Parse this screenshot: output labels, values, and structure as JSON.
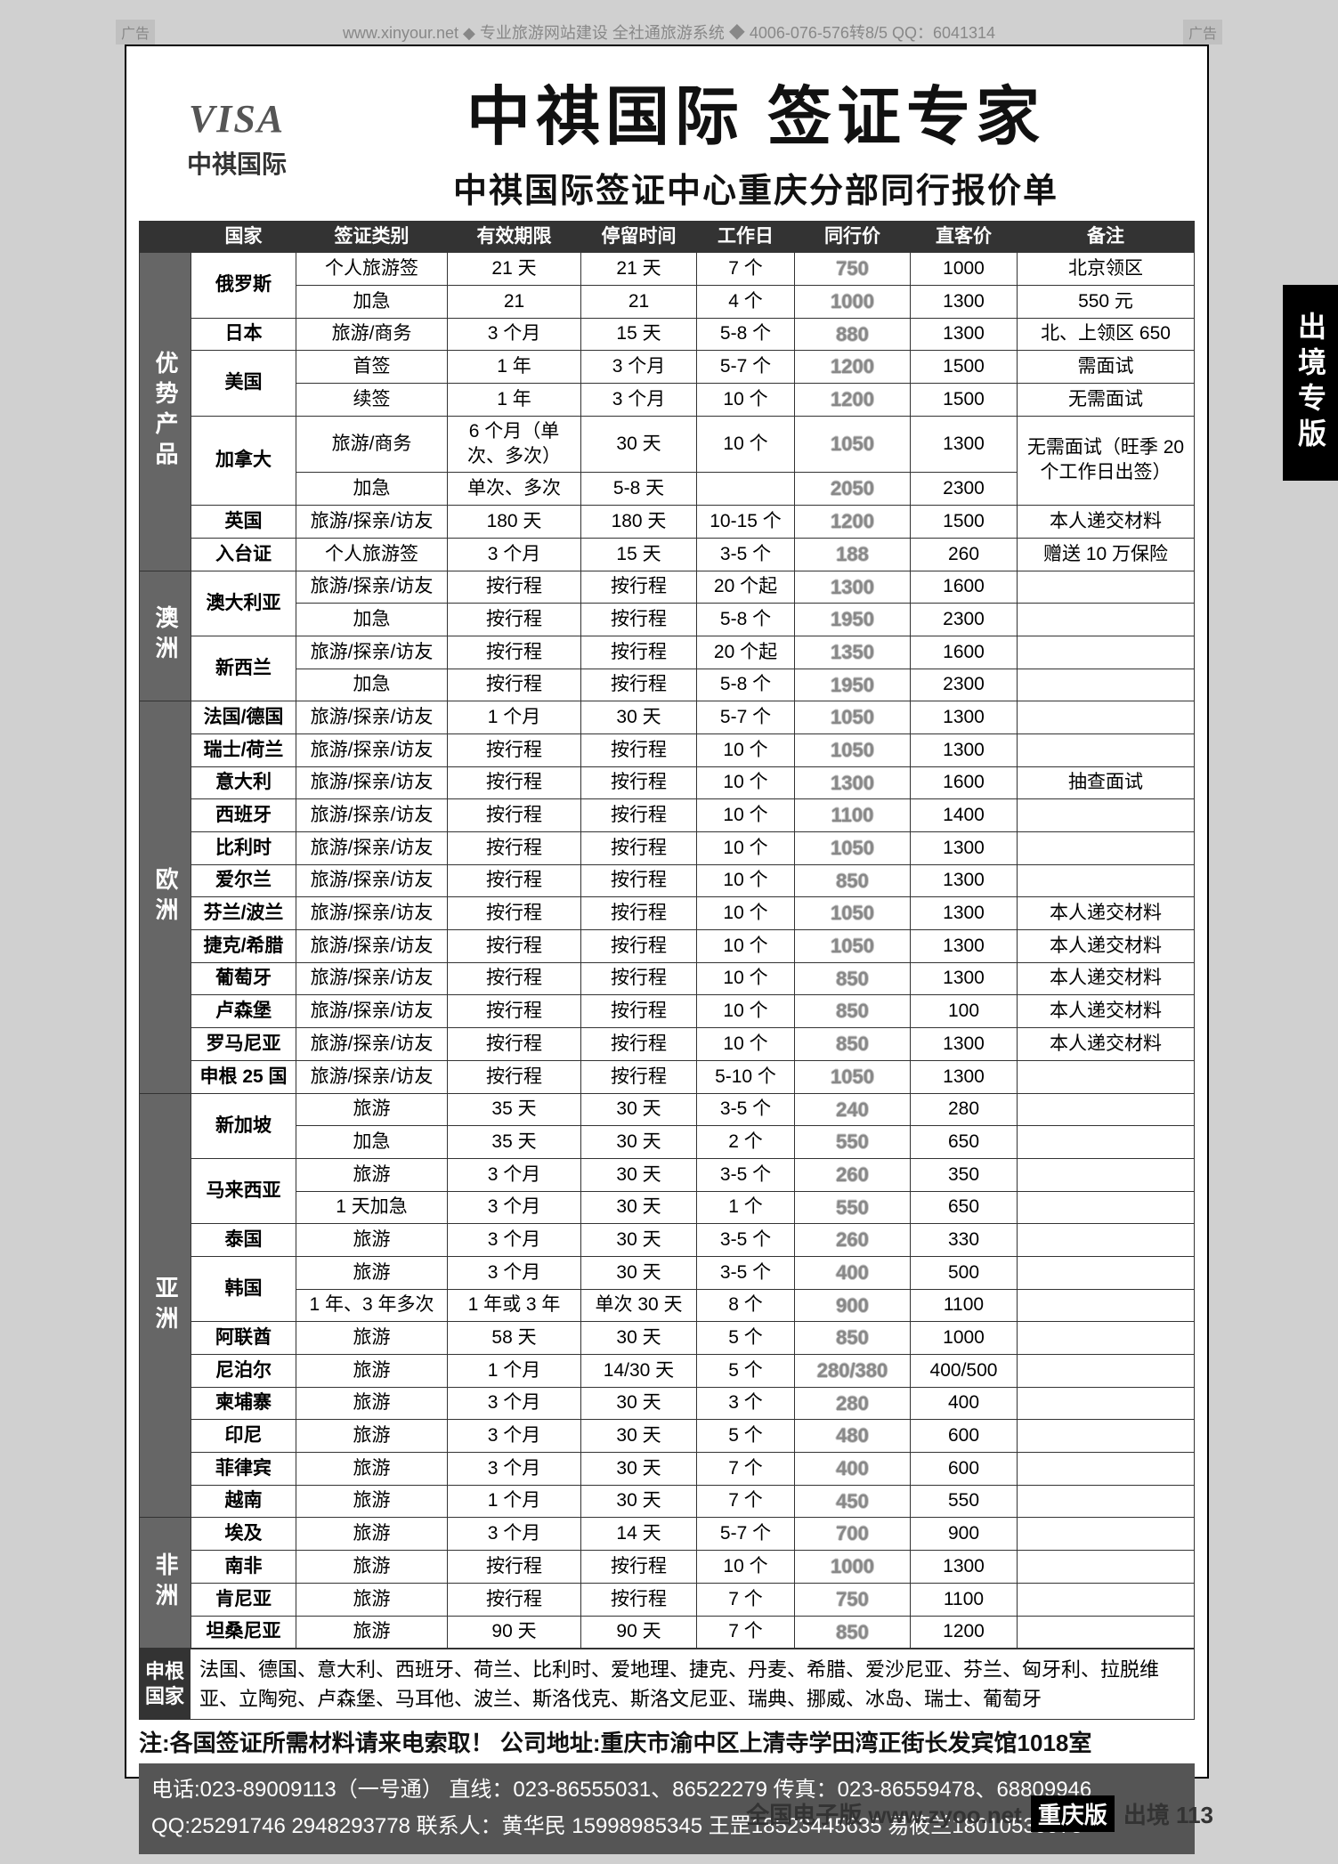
{
  "colors": {
    "page_bg": "#d0d0d0",
    "card_bg": "#ffffff",
    "border": "#333333",
    "header_bg": "#333333",
    "header_fg": "#ffffff",
    "group_bg": "#666666",
    "group_fg": "#ffffff",
    "contact_bg": "#555555",
    "peer_color": "#888888",
    "side_tab_bg": "#000000",
    "side_tab_fg": "#ffffff"
  },
  "fonts": {
    "main_title_pt": 72,
    "sub_title_pt": 38,
    "cell_pt": 21,
    "note_pt": 26,
    "contact_pt": 24
  },
  "top_bar": {
    "ad_label": "广告",
    "text": "www.xinyour.net ◆ 专业旅游网站建设 全社通旅游系统 ◆ 4006-076-576转8/5  QQ：6041314"
  },
  "side_tab": "出境专版",
  "logo": {
    "visa": "VISA",
    "cn": "中祺国际"
  },
  "title": {
    "main": "中祺国际 签证专家",
    "sub": "中祺国际签证中心重庆分部同行报价单"
  },
  "columns": [
    "国家",
    "签证类别",
    "有效期限",
    "停留时间",
    "工作日",
    "同行价",
    "直客价",
    "备注"
  ],
  "groups": [
    {
      "name": "优势产品",
      "rows": [
        {
          "country": "俄罗斯",
          "rowspan": 2,
          "visa": "个人旅游签",
          "valid": "21 天",
          "stay": "21 天",
          "wd": "7 个",
          "peer": "750",
          "direct": "1000",
          "remark": "北京领区"
        },
        {
          "visa": "加急",
          "valid": "21",
          "stay": "21",
          "wd": "4 个",
          "peer": "1000",
          "direct": "1300",
          "remark": "550 元"
        },
        {
          "country": "日本",
          "visa": "旅游/商务",
          "valid": "3 个月",
          "stay": "15 天",
          "wd": "5-8 个",
          "peer": "880",
          "direct": "1300",
          "remark": "北、上领区 650"
        },
        {
          "country": "美国",
          "rowspan": 2,
          "visa": "首签",
          "valid": "1 年",
          "stay": "3 个月",
          "wd": "5-7 个",
          "peer": "1200",
          "direct": "1500",
          "remark": "需面试"
        },
        {
          "visa": "续签",
          "valid": "1 年",
          "stay": "3 个月",
          "wd": "10 个",
          "peer": "1200",
          "direct": "1500",
          "remark": "无需面试"
        },
        {
          "country": "加拿大",
          "rowspan": 2,
          "visa": "旅游/商务",
          "valid": "6 个月（单次、多次）",
          "stay": "30 天",
          "wd": "10 个",
          "peer": "1050",
          "direct": "1300",
          "remark": "无需面试（旺季 20 个工作日出签）",
          "remark_rowspan": 2
        },
        {
          "visa": "加急",
          "valid": "单次、多次",
          "stay": "5-8 天",
          "wd": "",
          "peer": "2050",
          "direct": "2300"
        },
        {
          "country": "英国",
          "visa": "旅游/探亲/访友",
          "valid": "180 天",
          "stay": "180 天",
          "wd": "10-15 个",
          "peer": "1200",
          "direct": "1500",
          "remark": "本人递交材料"
        },
        {
          "country": "入台证",
          "visa": "个人旅游签",
          "valid": "3 个月",
          "stay": "15 天",
          "wd": "3-5 个",
          "peer": "188",
          "direct": "260",
          "remark": "赠送 10 万保险"
        }
      ]
    },
    {
      "name": "澳洲",
      "rows": [
        {
          "country": "澳大利亚",
          "rowspan": 2,
          "visa": "旅游/探亲/访友",
          "valid": "按行程",
          "stay": "按行程",
          "wd": "20 个起",
          "peer": "1300",
          "direct": "1600",
          "remark": ""
        },
        {
          "visa": "加急",
          "valid": "按行程",
          "stay": "按行程",
          "wd": "5-8 个",
          "peer": "1950",
          "direct": "2300",
          "remark": ""
        },
        {
          "country": "新西兰",
          "rowspan": 2,
          "visa": "旅游/探亲/访友",
          "valid": "按行程",
          "stay": "按行程",
          "wd": "20 个起",
          "peer": "1350",
          "direct": "1600",
          "remark": ""
        },
        {
          "visa": "加急",
          "valid": "按行程",
          "stay": "按行程",
          "wd": "5-8 个",
          "peer": "1950",
          "direct": "2300",
          "remark": ""
        }
      ]
    },
    {
      "name": "欧洲",
      "rows": [
        {
          "country": "法国/德国",
          "visa": "旅游/探亲/访友",
          "valid": "1 个月",
          "stay": "30 天",
          "wd": "5-7 个",
          "peer": "1050",
          "direct": "1300",
          "remark": ""
        },
        {
          "country": "瑞士/荷兰",
          "visa": "旅游/探亲/访友",
          "valid": "按行程",
          "stay": "按行程",
          "wd": "10 个",
          "peer": "1050",
          "direct": "1300",
          "remark": ""
        },
        {
          "country": "意大利",
          "visa": "旅游/探亲/访友",
          "valid": "按行程",
          "stay": "按行程",
          "wd": "10 个",
          "peer": "1300",
          "direct": "1600",
          "remark": "抽查面试"
        },
        {
          "country": "西班牙",
          "visa": "旅游/探亲/访友",
          "valid": "按行程",
          "stay": "按行程",
          "wd": "10 个",
          "peer": "1100",
          "direct": "1400",
          "remark": ""
        },
        {
          "country": "比利时",
          "visa": "旅游/探亲/访友",
          "valid": "按行程",
          "stay": "按行程",
          "wd": "10 个",
          "peer": "1050",
          "direct": "1300",
          "remark": ""
        },
        {
          "country": "爱尔兰",
          "visa": "旅游/探亲/访友",
          "valid": "按行程",
          "stay": "按行程",
          "wd": "10 个",
          "peer": "850",
          "direct": "1300",
          "remark": ""
        },
        {
          "country": "芬兰/波兰",
          "visa": "旅游/探亲/访友",
          "valid": "按行程",
          "stay": "按行程",
          "wd": "10 个",
          "peer": "1050",
          "direct": "1300",
          "remark": "本人递交材料"
        },
        {
          "country": "捷克/希腊",
          "visa": "旅游/探亲/访友",
          "valid": "按行程",
          "stay": "按行程",
          "wd": "10 个",
          "peer": "1050",
          "direct": "1300",
          "remark": "本人递交材料"
        },
        {
          "country": "葡萄牙",
          "visa": "旅游/探亲/访友",
          "valid": "按行程",
          "stay": "按行程",
          "wd": "10 个",
          "peer": "850",
          "direct": "1300",
          "remark": "本人递交材料"
        },
        {
          "country": "卢森堡",
          "visa": "旅游/探亲/访友",
          "valid": "按行程",
          "stay": "按行程",
          "wd": "10 个",
          "peer": "850",
          "direct": "100",
          "remark": "本人递交材料"
        },
        {
          "country": "罗马尼亚",
          "visa": "旅游/探亲/访友",
          "valid": "按行程",
          "stay": "按行程",
          "wd": "10 个",
          "peer": "850",
          "direct": "1300",
          "remark": "本人递交材料"
        },
        {
          "country": "申根 25 国",
          "visa": "旅游/探亲/访友",
          "valid": "按行程",
          "stay": "按行程",
          "wd": "5-10 个",
          "peer": "1050",
          "direct": "1300",
          "remark": ""
        }
      ]
    },
    {
      "name": "亚洲",
      "rows": [
        {
          "country": "新加坡",
          "rowspan": 2,
          "visa": "旅游",
          "valid": "35 天",
          "stay": "30 天",
          "wd": "3-5 个",
          "peer": "240",
          "direct": "280",
          "remark": ""
        },
        {
          "visa": "加急",
          "valid": "35 天",
          "stay": "30 天",
          "wd": "2 个",
          "peer": "550",
          "direct": "650",
          "remark": ""
        },
        {
          "country": "马来西亚",
          "rowspan": 2,
          "visa": "旅游",
          "valid": "3 个月",
          "stay": "30 天",
          "wd": "3-5 个",
          "peer": "260",
          "direct": "350",
          "remark": ""
        },
        {
          "visa": "1 天加急",
          "valid": "3 个月",
          "stay": "30 天",
          "wd": "1 个",
          "peer": "550",
          "direct": "650",
          "remark": ""
        },
        {
          "country": "泰国",
          "visa": "旅游",
          "valid": "3 个月",
          "stay": "30 天",
          "wd": "3-5 个",
          "peer": "260",
          "direct": "330",
          "remark": ""
        },
        {
          "country": "韩国",
          "rowspan": 2,
          "visa": "旅游",
          "valid": "3 个月",
          "stay": "30 天",
          "wd": "3-5 个",
          "peer": "400",
          "direct": "500",
          "remark": ""
        },
        {
          "visa": "1 年、3 年多次",
          "valid": "1 年或 3 年",
          "stay": "单次 30 天",
          "wd": "8 个",
          "peer": "900",
          "direct": "1100",
          "remark": ""
        },
        {
          "country": "阿联酋",
          "visa": "旅游",
          "valid": "58 天",
          "stay": "30 天",
          "wd": "5 个",
          "peer": "850",
          "direct": "1000",
          "remark": ""
        },
        {
          "country": "尼泊尔",
          "visa": "旅游",
          "valid": "1 个月",
          "stay": "14/30 天",
          "wd": "5 个",
          "peer": "280/380",
          "direct": "400/500",
          "remark": ""
        },
        {
          "country": "柬埔寨",
          "visa": "旅游",
          "valid": "3 个月",
          "stay": "30 天",
          "wd": "3 个",
          "peer": "280",
          "direct": "400",
          "remark": ""
        },
        {
          "country": "印尼",
          "visa": "旅游",
          "valid": "3 个月",
          "stay": "30 天",
          "wd": "5 个",
          "peer": "480",
          "direct": "600",
          "remark": ""
        },
        {
          "country": "菲律宾",
          "visa": "旅游",
          "valid": "3 个月",
          "stay": "30 天",
          "wd": "7 个",
          "peer": "400",
          "direct": "600",
          "remark": ""
        },
        {
          "country": "越南",
          "visa": "旅游",
          "valid": "1 个月",
          "stay": "30 天",
          "wd": "7 个",
          "peer": "450",
          "direct": "550",
          "remark": ""
        }
      ]
    },
    {
      "name": "非洲",
      "rows": [
        {
          "country": "埃及",
          "visa": "旅游",
          "valid": "3 个月",
          "stay": "14 天",
          "wd": "5-7 个",
          "peer": "700",
          "direct": "900",
          "remark": ""
        },
        {
          "country": "南非",
          "visa": "旅游",
          "valid": "按行程",
          "stay": "按行程",
          "wd": "10 个",
          "peer": "1000",
          "direct": "1300",
          "remark": ""
        },
        {
          "country": "肯尼亚",
          "visa": "旅游",
          "valid": "按行程",
          "stay": "按行程",
          "wd": "7 个",
          "peer": "750",
          "direct": "1100",
          "remark": ""
        },
        {
          "country": "坦桑尼亚",
          "visa": "旅游",
          "valid": "90 天",
          "stay": "90 天",
          "wd": "7 个",
          "peer": "850",
          "direct": "1200",
          "remark": ""
        }
      ]
    }
  ],
  "schengen": {
    "label": "申根国家",
    "text": "法国、德国、意大利、西班牙、荷兰、比利时、爱地理、捷克、丹麦、希腊、爱沙尼亚、芬兰、匈牙利、拉脱维亚、立陶宛、卢森堡、马耳他、波兰、斯洛伐克、斯洛文尼亚、瑞典、挪威、冰岛、瑞士、葡萄牙"
  },
  "note": "注:各国签证所需材料请来电索取！  公司地址:重庆市渝中区上清寺学田湾正街长发宾馆1018室",
  "contact": {
    "line1": "电话:023-89009113（一号通） 直线：023-86555031、86522279  传真：023-86559478、68809946",
    "line2": "QQ:25291746 2948293778 联系人：黄华民 15998985345  王罡18523445635  易筱兰18010539973"
  },
  "bottom": {
    "left": "全国电子版 www.zyoo.net",
    "cq": "重庆版",
    "right": "出境 113"
  }
}
